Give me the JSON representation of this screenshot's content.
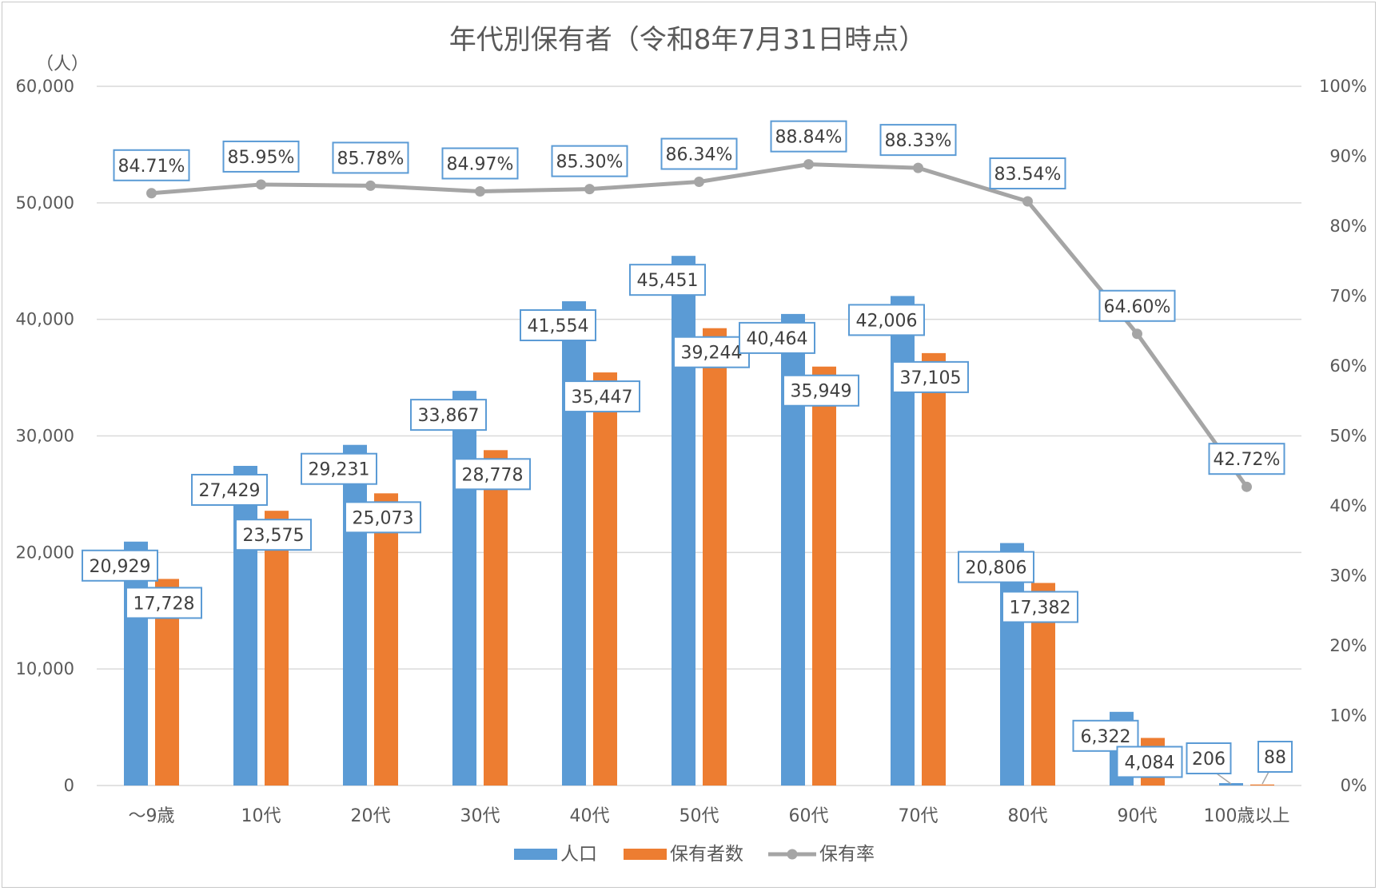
{
  "chart_data": {
    "type": "bar",
    "title": "年代別保有者（令和8年7月31日時点）",
    "y_unit": "（人）",
    "categories": [
      "～9歳",
      "10代",
      "20代",
      "30代",
      "40代",
      "50代",
      "60代",
      "70代",
      "80代",
      "90代",
      "100歳以上"
    ],
    "series": [
      {
        "name": "人口",
        "kind": "bar",
        "axis": "left",
        "color": "#5b9bd5",
        "values": [
          20929,
          27429,
          29231,
          33867,
          41554,
          45451,
          40464,
          42006,
          20806,
          6322,
          206
        ],
        "labels": [
          "20,929",
          "27,429",
          "29,231",
          "33,867",
          "41,554",
          "45,451",
          "40,464",
          "42,006",
          "20,806",
          "6,322",
          "206"
        ]
      },
      {
        "name": "保有者数",
        "kind": "bar",
        "axis": "left",
        "color": "#ed7d31",
        "values": [
          17728,
          23575,
          25073,
          28778,
          35447,
          39244,
          35949,
          37105,
          17382,
          4084,
          88
        ],
        "labels": [
          "17,728",
          "23,575",
          "25,073",
          "28,778",
          "35,447",
          "39,244",
          "35,949",
          "37,105",
          "17,382",
          "4,084",
          "88"
        ]
      },
      {
        "name": "保有率",
        "kind": "line",
        "axis": "right",
        "color": "#a5a5a5",
        "values": [
          84.71,
          85.95,
          85.78,
          84.97,
          85.3,
          86.34,
          88.84,
          88.33,
          83.54,
          64.6,
          42.72
        ],
        "labels": [
          "84.71%",
          "85.95%",
          "85.78%",
          "84.97%",
          "85.30%",
          "86.34%",
          "88.84%",
          "88.33%",
          "83.54%",
          "64.60%",
          "42.72%"
        ]
      }
    ],
    "y_left": {
      "min": 0,
      "max": 60000,
      "ticks": [
        "0",
        "10,000",
        "20,000",
        "30,000",
        "40,000",
        "50,000",
        "60,000"
      ]
    },
    "y_right": {
      "min": 0,
      "max": 100,
      "ticks": [
        "0%",
        "10%",
        "20%",
        "30%",
        "40%",
        "50%",
        "60%",
        "70%",
        "80%",
        "90%",
        "100%"
      ]
    },
    "grid": true,
    "legend_position": "bottom"
  }
}
